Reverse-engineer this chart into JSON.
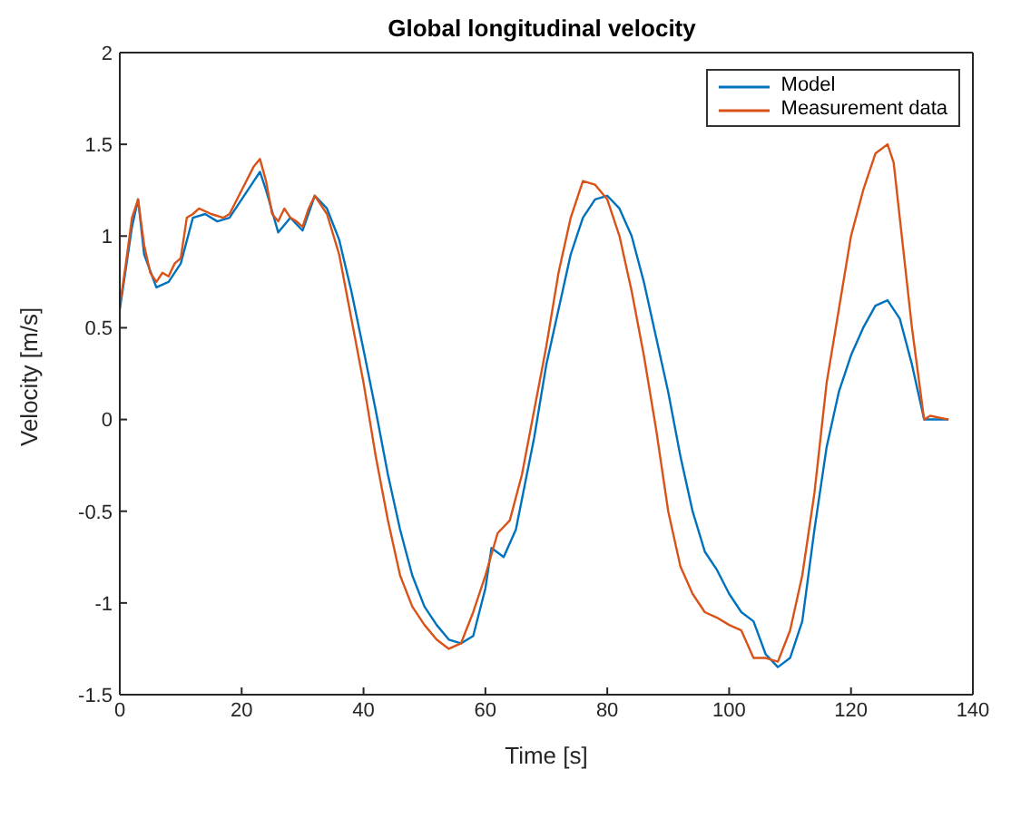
{
  "chart_data": {
    "type": "line",
    "title": "Global longitudinal velocity",
    "xlabel": "Time [s]",
    "ylabel": "Velocity [m/s]",
    "xlim": [
      0,
      140
    ],
    "xticks": [
      0,
      20,
      40,
      60,
      80,
      100,
      120,
      140
    ],
    "ylim": [
      -1.5,
      2
    ],
    "yticks": [
      -1.5,
      -1,
      -0.5,
      0,
      0.5,
      1,
      1.5,
      2
    ],
    "legend": "top right",
    "marker": "none",
    "line_style": "solid",
    "series": [
      {
        "name": "Model",
        "color": "#0072bd",
        "x": [
          0,
          2,
          3,
          4,
          6,
          8,
          10,
          12,
          14,
          16,
          18,
          20,
          22,
          23,
          24,
          26,
          28,
          30,
          32,
          34,
          36,
          38,
          40,
          42,
          44,
          46,
          48,
          50,
          52,
          54,
          56,
          58,
          60,
          61,
          63,
          65,
          68,
          70,
          72,
          74,
          76,
          78,
          80,
          82,
          84,
          86,
          88,
          90,
          92,
          94,
          96,
          98,
          100,
          102,
          104,
          106,
          108,
          110,
          112,
          114,
          116,
          118,
          120,
          122,
          124,
          126,
          128,
          130,
          132,
          134,
          136
        ],
        "values": [
          0.6,
          1.05,
          1.2,
          0.9,
          0.72,
          0.75,
          0.85,
          1.1,
          1.12,
          1.08,
          1.1,
          1.2,
          1.3,
          1.35,
          1.25,
          1.02,
          1.1,
          1.03,
          1.22,
          1.15,
          0.98,
          0.7,
          0.38,
          0.05,
          -0.3,
          -0.6,
          -0.85,
          -1.02,
          -1.12,
          -1.2,
          -1.22,
          -1.18,
          -0.92,
          -0.7,
          -0.75,
          -0.6,
          -0.1,
          0.3,
          0.6,
          0.9,
          1.1,
          1.2,
          1.22,
          1.15,
          1.0,
          0.75,
          0.45,
          0.15,
          -0.2,
          -0.5,
          -0.72,
          -0.82,
          -0.95,
          -1.05,
          -1.1,
          -1.28,
          -1.35,
          -1.3,
          -1.1,
          -0.6,
          -0.15,
          0.15,
          0.35,
          0.5,
          0.62,
          0.65,
          0.55,
          0.3,
          0.0,
          0,
          0
        ]
      },
      {
        "name": "Measurement data",
        "color": "#d95319",
        "x": [
          0,
          1,
          2,
          3,
          4,
          5,
          6,
          7,
          8,
          9,
          10,
          11,
          12,
          13,
          15,
          17,
          18,
          20,
          22,
          23,
          24,
          25,
          26,
          27,
          28,
          29,
          30,
          31,
          32,
          34,
          36,
          38,
          40,
          42,
          44,
          46,
          48,
          50,
          52,
          54,
          56,
          58,
          60,
          62,
          64,
          66,
          68,
          70,
          72,
          74,
          76,
          78,
          80,
          82,
          84,
          86,
          88,
          90,
          92,
          94,
          96,
          98,
          100,
          102,
          104,
          106,
          108,
          110,
          112,
          114,
          116,
          118,
          120,
          122,
          124,
          126,
          127,
          128,
          130,
          132,
          133,
          136
        ],
        "values": [
          0.62,
          0.85,
          1.1,
          1.2,
          0.95,
          0.8,
          0.75,
          0.8,
          0.78,
          0.85,
          0.88,
          1.1,
          1.12,
          1.15,
          1.12,
          1.1,
          1.12,
          1.25,
          1.38,
          1.42,
          1.3,
          1.12,
          1.08,
          1.15,
          1.1,
          1.08,
          1.05,
          1.15,
          1.22,
          1.12,
          0.9,
          0.55,
          0.2,
          -0.2,
          -0.55,
          -0.85,
          -1.02,
          -1.12,
          -1.2,
          -1.25,
          -1.22,
          -1.05,
          -0.85,
          -0.62,
          -0.55,
          -0.3,
          0.05,
          0.4,
          0.8,
          1.1,
          1.3,
          1.28,
          1.2,
          1.0,
          0.7,
          0.35,
          -0.05,
          -0.5,
          -0.8,
          -0.95,
          -1.05,
          -1.08,
          -1.12,
          -1.15,
          -1.3,
          -1.3,
          -1.32,
          -1.15,
          -0.85,
          -0.4,
          0.2,
          0.6,
          1.0,
          1.25,
          1.45,
          1.5,
          1.4,
          1.1,
          0.5,
          0.0,
          0.02,
          0
        ]
      }
    ]
  }
}
